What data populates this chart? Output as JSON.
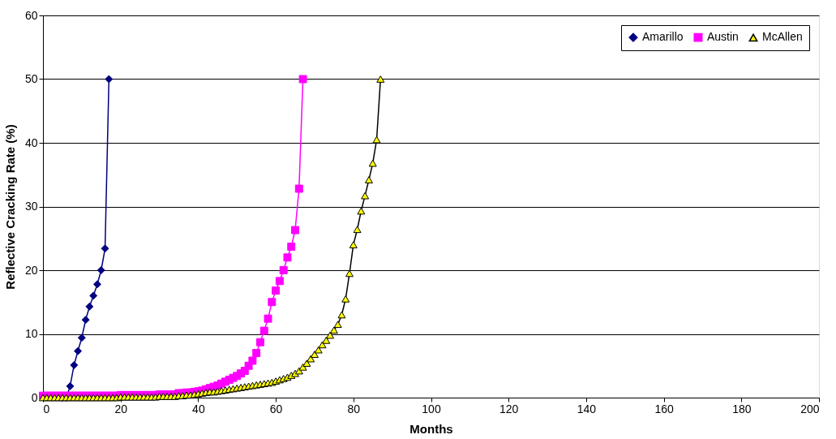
{
  "chart_data": {
    "type": "line",
    "xlabel": "Months",
    "ylabel": "Reflective Cracking Rate (%)",
    "xlim": [
      0,
      200
    ],
    "xticks": [
      0,
      20,
      40,
      60,
      80,
      100,
      120,
      140,
      160,
      180,
      200
    ],
    "ylim": [
      0,
      60
    ],
    "yticks": [
      0,
      10,
      20,
      30,
      40,
      50,
      60
    ],
    "grid": "y",
    "legend": "top right",
    "line_style": "solid",
    "series": [
      {
        "name": "Amarillo",
        "color": "#000080",
        "marker": "diamond",
        "x": [
          5,
          6,
          7,
          8,
          9,
          10,
          11,
          12,
          13,
          14,
          15,
          16,
          17
        ],
        "values": [
          0,
          0,
          1.8,
          5.1,
          7.3,
          9.4,
          12.2,
          14.3,
          16.0,
          17.8,
          20.0,
          23.4,
          50
        ]
      },
      {
        "name": "Austin",
        "color": "#ff00ff",
        "marker": "square",
        "x": [
          0,
          1,
          2,
          3,
          4,
          5,
          6,
          7,
          8,
          9,
          10,
          11,
          12,
          13,
          14,
          15,
          16,
          17,
          18,
          19,
          20,
          21,
          22,
          23,
          24,
          25,
          26,
          27,
          28,
          29,
          30,
          31,
          32,
          33,
          34,
          35,
          36,
          37,
          38,
          39,
          40,
          41,
          42,
          43,
          44,
          45,
          46,
          47,
          48,
          49,
          50,
          51,
          52,
          53,
          54,
          55,
          56,
          57,
          58,
          59,
          60,
          61,
          62,
          63,
          64,
          65,
          66,
          67
        ],
        "values": [
          0.3,
          0.3,
          0.3,
          0.3,
          0.3,
          0.3,
          0.3,
          0.3,
          0.3,
          0.3,
          0.3,
          0.3,
          0.3,
          0.3,
          0.3,
          0.3,
          0.3,
          0.3,
          0.3,
          0.3,
          0.4,
          0.4,
          0.4,
          0.4,
          0.4,
          0.4,
          0.4,
          0.4,
          0.4,
          0.4,
          0.5,
          0.5,
          0.5,
          0.5,
          0.5,
          0.7,
          0.7,
          0.8,
          0.8,
          0.9,
          1.0,
          1.1,
          1.3,
          1.5,
          1.7,
          1.9,
          2.2,
          2.5,
          2.8,
          3.1,
          3.4,
          3.8,
          4.2,
          5.0,
          5.8,
          7.0,
          8.7,
          10.5,
          12.4,
          15.0,
          16.8,
          18.3,
          20.0,
          22.0,
          23.7,
          26.3,
          32.8,
          50
        ]
      },
      {
        "name": "McAllen",
        "color": "#000000",
        "marker": "triangle",
        "x": [
          0,
          1,
          2,
          3,
          4,
          5,
          6,
          7,
          8,
          9,
          10,
          11,
          12,
          13,
          14,
          15,
          16,
          17,
          18,
          19,
          20,
          21,
          22,
          23,
          24,
          25,
          26,
          27,
          28,
          29,
          30,
          31,
          32,
          33,
          34,
          35,
          36,
          37,
          38,
          39,
          40,
          41,
          42,
          43,
          44,
          45,
          46,
          47,
          48,
          49,
          50,
          51,
          52,
          53,
          54,
          55,
          56,
          57,
          58,
          59,
          60,
          61,
          62,
          63,
          64,
          65,
          66,
          67,
          68,
          69,
          70,
          71,
          72,
          73,
          74,
          75,
          76,
          77,
          78,
          79,
          80,
          81,
          82,
          83,
          84,
          85,
          86,
          87
        ],
        "values": [
          0,
          0,
          0,
          0,
          0,
          0,
          0,
          0,
          0,
          0,
          0,
          0,
          0,
          0,
          0,
          0,
          0,
          0,
          0,
          0,
          0.1,
          0.1,
          0.1,
          0.1,
          0.1,
          0.1,
          0.1,
          0.1,
          0.1,
          0.1,
          0.2,
          0.2,
          0.2,
          0.2,
          0.2,
          0.3,
          0.3,
          0.4,
          0.4,
          0.5,
          0.6,
          0.7,
          0.8,
          0.9,
          0.9,
          1.0,
          1.1,
          1.2,
          1.3,
          1.4,
          1.5,
          1.6,
          1.7,
          1.8,
          1.9,
          2.0,
          2.1,
          2.2,
          2.3,
          2.4,
          2.6,
          2.8,
          3.0,
          3.2,
          3.5,
          3.8,
          4.2,
          4.8,
          5.4,
          6.1,
          6.8,
          7.5,
          8.3,
          9.0,
          9.8,
          10.6,
          11.5,
          13.0,
          15.5,
          19.5,
          24.0,
          26.4,
          29.3,
          31.7,
          34.2,
          36.8,
          40.5,
          50
        ]
      }
    ]
  }
}
